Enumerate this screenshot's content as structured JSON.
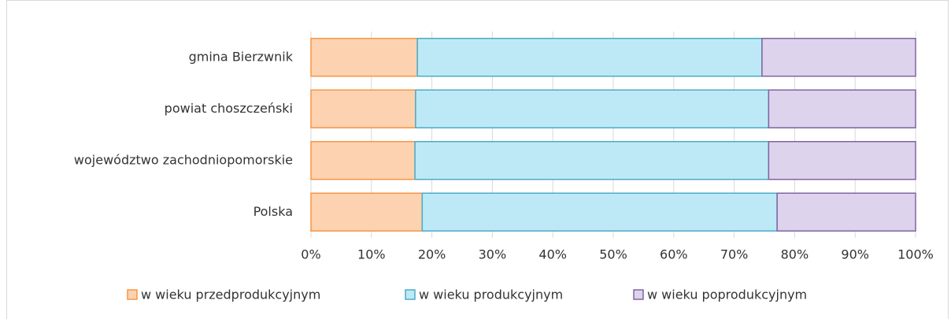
{
  "chart_data": {
    "type": "stacked-bar-horizontal",
    "categories": [
      "gmina Bierzwnik",
      "powiat choszczeński",
      "województwo zachodniopomorskie",
      "Polska"
    ],
    "series": [
      {
        "name": "w wieku przedprodukcyjnym",
        "color": "#f79646",
        "fill": "#fcd2b0",
        "values": [
          17.6,
          17.3,
          17.2,
          18.4
        ]
      },
      {
        "name": "w wieku produkcyjnym",
        "color": "#4bacc6",
        "fill": "#bde9f6",
        "values": [
          57.0,
          58.4,
          58.5,
          58.7
        ]
      },
      {
        "name": "w wieku poprodukcyjnym",
        "color": "#8064a2",
        "fill": "#ddd3ec",
        "values": [
          25.4,
          24.3,
          24.3,
          22.9
        ]
      }
    ],
    "xlim": [
      0,
      100
    ],
    "xticks": [
      {
        "value": 0,
        "label": "0%"
      },
      {
        "value": 10,
        "label": "10%"
      },
      {
        "value": 20,
        "label": "20%"
      },
      {
        "value": 30,
        "label": "30%"
      },
      {
        "value": 40,
        "label": "40%"
      },
      {
        "value": 50,
        "label": "50%"
      },
      {
        "value": 60,
        "label": "60%"
      },
      {
        "value": 70,
        "label": "70%"
      },
      {
        "value": 80,
        "label": "80%"
      },
      {
        "value": 90,
        "label": "90%"
      },
      {
        "value": 100,
        "label": "100%"
      }
    ],
    "grid": true,
    "legend": "bottom"
  }
}
